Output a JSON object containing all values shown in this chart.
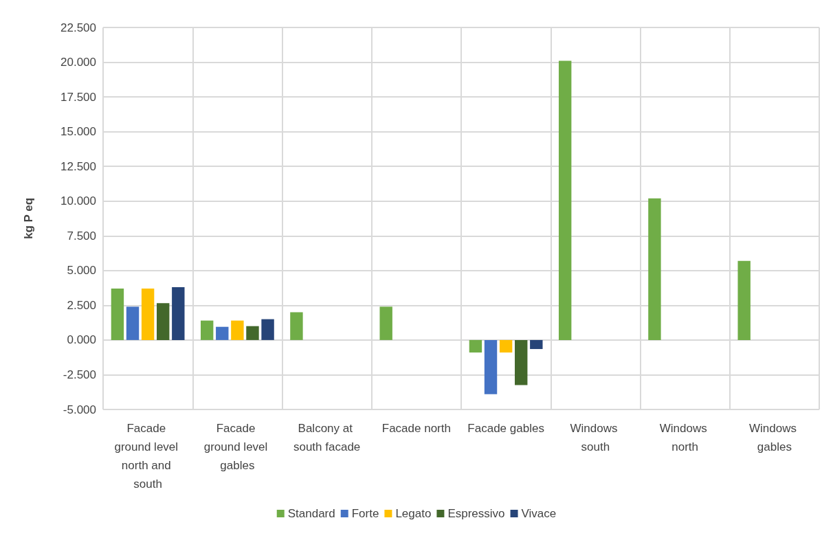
{
  "chart_data": {
    "type": "bar",
    "ylabel": "kg P eq",
    "categories": [
      "Facade ground level north and south",
      "Facade ground level gables",
      "Balcony at south facade",
      "Facade north",
      "Facade gables",
      "Windows south",
      "Windows north",
      "Windows gables"
    ],
    "series": [
      {
        "name": "Standard",
        "color": "#70ad47",
        "values": [
          3.7,
          1.4,
          2.0,
          2.4,
          -0.9,
          20.1,
          10.2,
          5.7
        ]
      },
      {
        "name": "Forte",
        "color": "#4472c4",
        "values": [
          2.4,
          0.95,
          null,
          null,
          -3.9,
          null,
          null,
          null
        ]
      },
      {
        "name": "Legato",
        "color": "#ffc000",
        "values": [
          3.7,
          1.4,
          null,
          null,
          -0.9,
          null,
          null,
          null
        ]
      },
      {
        "name": "Espressivo",
        "color": "#43682b",
        "values": [
          2.65,
          1.0,
          null,
          null,
          -3.25,
          null,
          null,
          null
        ]
      },
      {
        "name": "Vivace",
        "color": "#264478",
        "values": [
          3.8,
          1.5,
          null,
          null,
          -0.65,
          null,
          null,
          null
        ]
      }
    ],
    "ylim": [
      -5,
      22.5
    ],
    "yticks": [
      {
        "value": -5,
        "label": "-5.000"
      },
      {
        "value": -2.5,
        "label": "-2.500"
      },
      {
        "value": 0,
        "label": "0.000"
      },
      {
        "value": 2.5,
        "label": "2.500"
      },
      {
        "value": 5,
        "label": "5.000"
      },
      {
        "value": 7.5,
        "label": "7.500"
      },
      {
        "value": 10,
        "label": "10.000"
      },
      {
        "value": 12.5,
        "label": "12.500"
      },
      {
        "value": 15,
        "label": "15.000"
      },
      {
        "value": 17.5,
        "label": "17.500"
      },
      {
        "value": 20,
        "label": "20.000"
      },
      {
        "value": 22.5,
        "label": "22.500"
      }
    ],
    "grid": true,
    "legend": "bottom"
  }
}
